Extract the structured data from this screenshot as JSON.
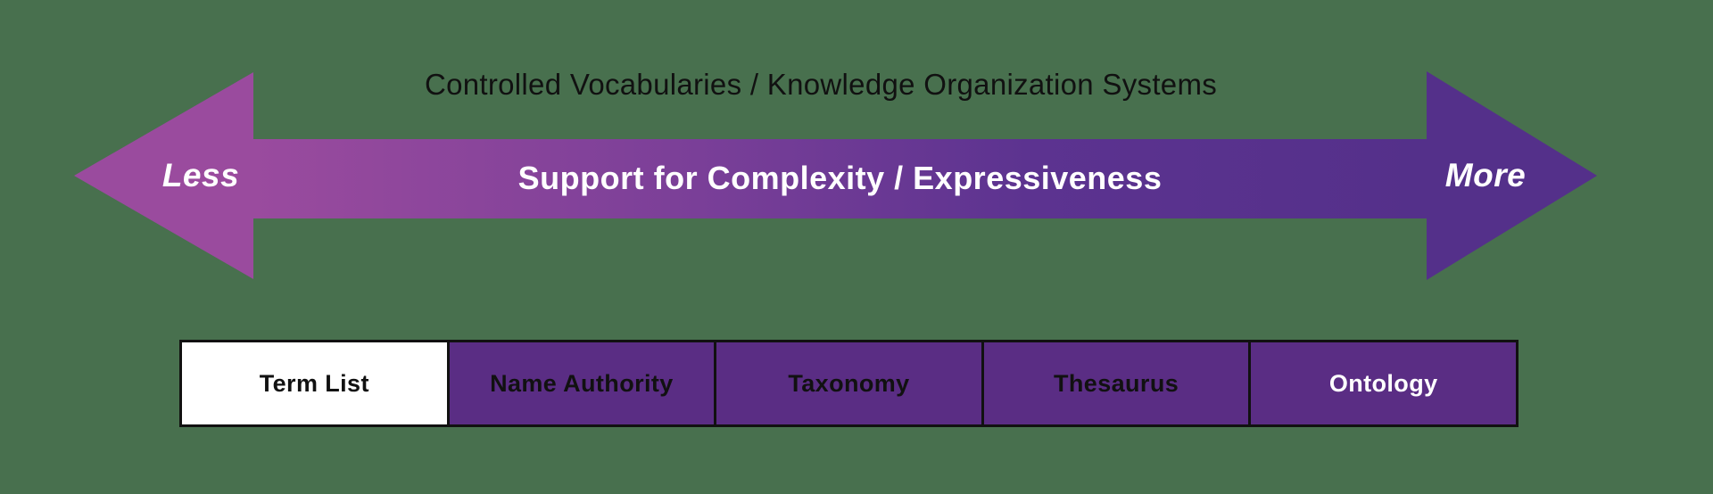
{
  "colors": {
    "background": "#48704E",
    "arrow-light": "#9A4B9E",
    "arrow-mid": "#7A3F98",
    "arrow-dark2": "#5C3390",
    "arrow-dark": "#54308A",
    "arrow-text": "#FFFFFF",
    "title-color": "#111111",
    "box-border": "#111111",
    "box-purple": "#5A2D84"
  },
  "header": {
    "title": "Controlled Vocabularies / Knowledge Organization Systems"
  },
  "arrow": {
    "left_label": "Less",
    "center_label": "Support for Complexity / Expressiveness",
    "right_label": "More"
  },
  "boxes": {
    "items": [
      {
        "label": "Term List",
        "bg": "#FFFFFF",
        "fg": "#111111"
      },
      {
        "label": "Name Authority",
        "bg": "#5A2D84",
        "fg": "#111111"
      },
      {
        "label": "Taxonomy",
        "bg": "#5A2D84",
        "fg": "#111111"
      },
      {
        "label": "Thesaurus",
        "bg": "#5A2D84",
        "fg": "#111111"
      },
      {
        "label": "Ontology",
        "bg": "#5A2D84",
        "fg": "#FFFFFF"
      }
    ]
  }
}
